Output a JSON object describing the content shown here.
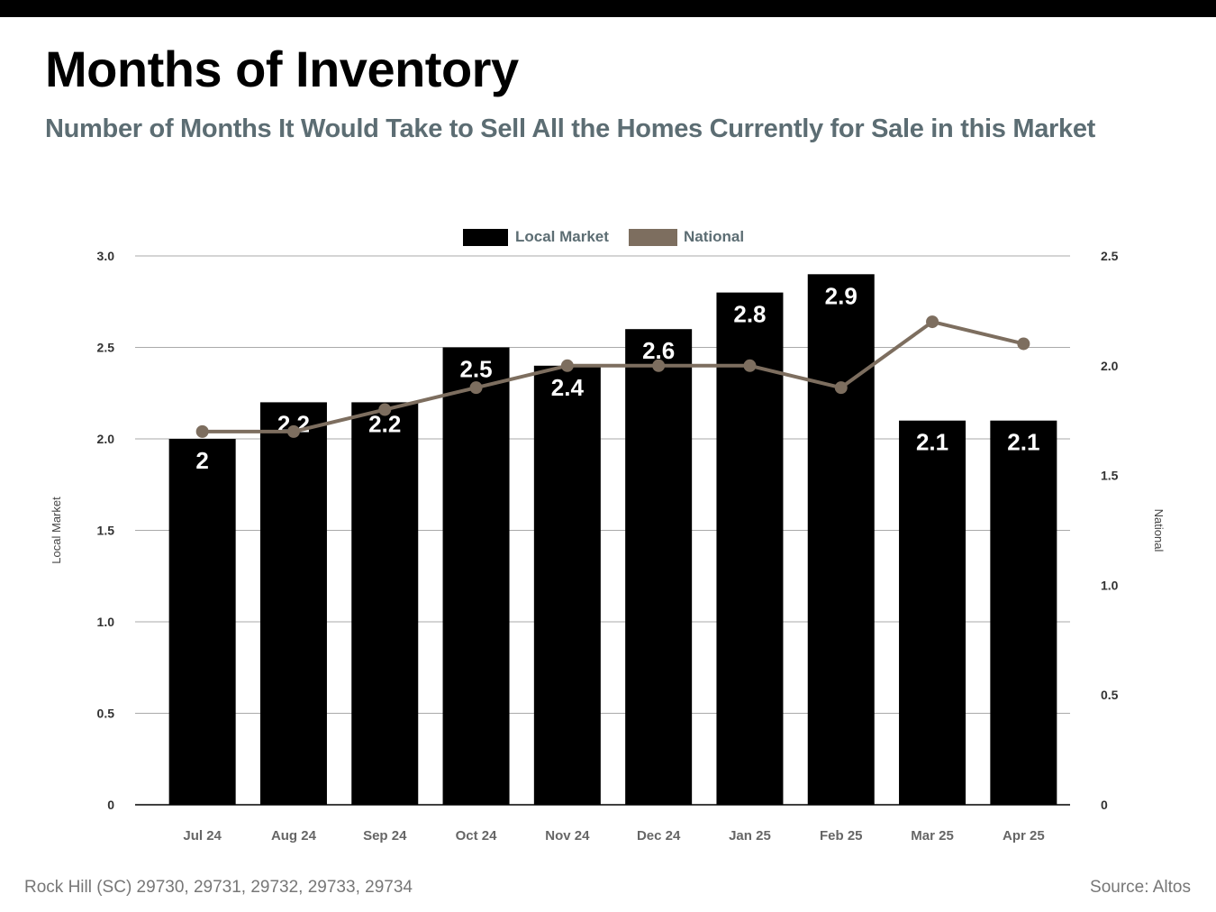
{
  "header": {
    "title": "Months of Inventory",
    "subtitle": "Number of Months It Would Take to Sell All the Homes Currently for Sale in this Market"
  },
  "footer": {
    "location": "Rock Hill (SC) 29730, 29731, 29732, 29733, 29734",
    "source": "Source: Altos"
  },
  "colors": {
    "local_bar": "#000000",
    "national_line": "#7d6e5f",
    "subtitle": "#5c6d73",
    "grid": "#aaaaaa"
  },
  "chart_data": {
    "type": "bar",
    "categories": [
      "Jul 24",
      "Aug 24",
      "Sep 24",
      "Oct 24",
      "Nov 24",
      "Dec 24",
      "Jan 25",
      "Feb 25",
      "Mar 25",
      "Apr 25"
    ],
    "series": [
      {
        "name": "Local Market",
        "type": "bar",
        "axis": "left",
        "values": [
          2,
          2.2,
          2.2,
          2.5,
          2.4,
          2.6,
          2.8,
          2.9,
          2.1,
          2.1
        ]
      },
      {
        "name": "National",
        "type": "line",
        "axis": "right",
        "values": [
          1.7,
          1.7,
          1.8,
          1.9,
          2.0,
          2.0,
          2.0,
          1.9,
          2.2,
          2.1
        ]
      }
    ],
    "y_left": {
      "label": "Local Market",
      "lim": [
        0,
        3
      ],
      "ticks": [
        "0",
        "0.5",
        "1.0",
        "1.5",
        "2.0",
        "2.5",
        "3.0"
      ]
    },
    "y_right": {
      "label": "National",
      "lim": [
        0,
        2.5
      ],
      "ticks": [
        "0",
        "0.5",
        "1.0",
        "1.5",
        "2.0",
        "2.5"
      ]
    },
    "data_labels": [
      "2",
      "2.2",
      "2.2",
      "2.5",
      "2.4",
      "2.6",
      "2.8",
      "2.9",
      "2.1",
      "2.1"
    ],
    "legend": {
      "position": "top-center",
      "entries": [
        "Local Market",
        "National"
      ]
    },
    "grid": true
  }
}
